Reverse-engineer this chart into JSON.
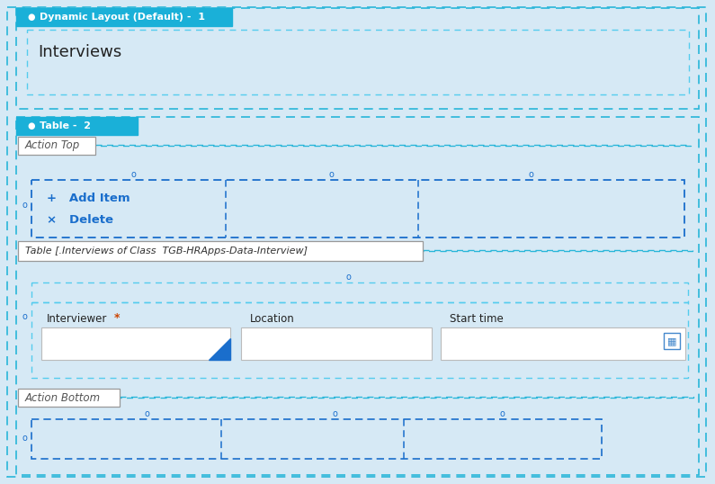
{
  "bg_color": "#d6e9f5",
  "white": "#ffffff",
  "cyan_header": "#1ab0d8",
  "blue_dashed": "#29b6d9",
  "blue_dark_border": "#1a6ecc",
  "action_box_border": "#888888",
  "section1_header_text": "Dynamic Layout (Default) -  1",
  "section1_inner_text": "Interviews",
  "section2_header_text": "Table -  2",
  "action_top_text": "Action Top",
  "add_item_text": "+   Add Item",
  "delete_text": "×   Delete",
  "table_label_text": "Table [.Interviews of Class  TGB-HRApps-Data-Interview]",
  "interviewer_text": "Interviewer",
  "location_text": "Location",
  "start_time_text": "Start time",
  "action_bottom_text": "Action Bottom",
  "zero_label": "o",
  "dot_color": "#1a6ecc",
  "header_dot": "●",
  "input_border": "#bbbbbb",
  "triangle_color": "#1a6ecc",
  "icon_color": "#4488cc"
}
